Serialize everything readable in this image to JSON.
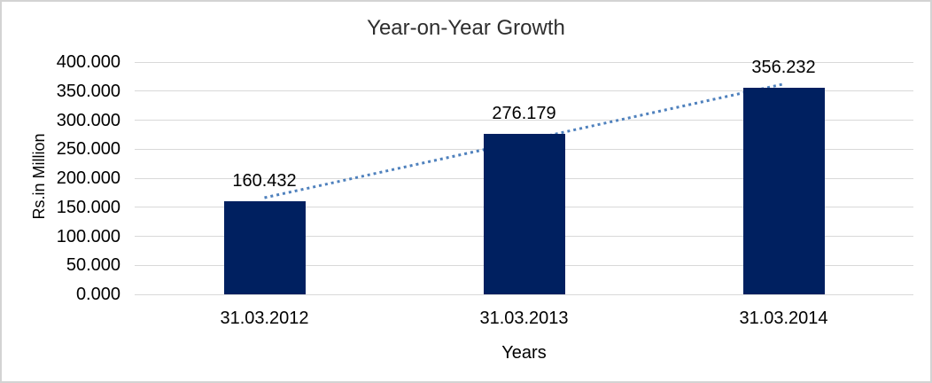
{
  "chart_data": {
    "type": "bar",
    "title": "Year-on-Year Growth",
    "xlabel": "Years",
    "ylabel": "Rs.in Million",
    "categories": [
      "31.03.2012",
      "31.03.2013",
      "31.03.2014"
    ],
    "values": [
      160.432,
      276.179,
      356.232
    ],
    "bar_labels": [
      "160.432",
      "276.179",
      "356.232"
    ],
    "ylim": [
      0,
      400
    ],
    "yticks": [
      {
        "value": 0,
        "label": "0.000"
      },
      {
        "value": 50,
        "label": "50.000"
      },
      {
        "value": 100,
        "label": "100.000"
      },
      {
        "value": 150,
        "label": "150.000"
      },
      {
        "value": 200,
        "label": "200.000"
      },
      {
        "value": 250,
        "label": "250.000"
      },
      {
        "value": 300,
        "label": "300.000"
      },
      {
        "value": 350,
        "label": "350.000"
      },
      {
        "value": 400,
        "label": "400.000"
      }
    ],
    "grid": "horizontal",
    "legend": "none",
    "trendline": {
      "type": "linear",
      "style": "dotted"
    },
    "colors": {
      "bar": "#002060",
      "trendline": "#4F81BD",
      "gridline": "#D9D9D9",
      "frame_border": "#D3D3D3",
      "text": "#000000",
      "title_text": "#2E2E2E"
    }
  }
}
